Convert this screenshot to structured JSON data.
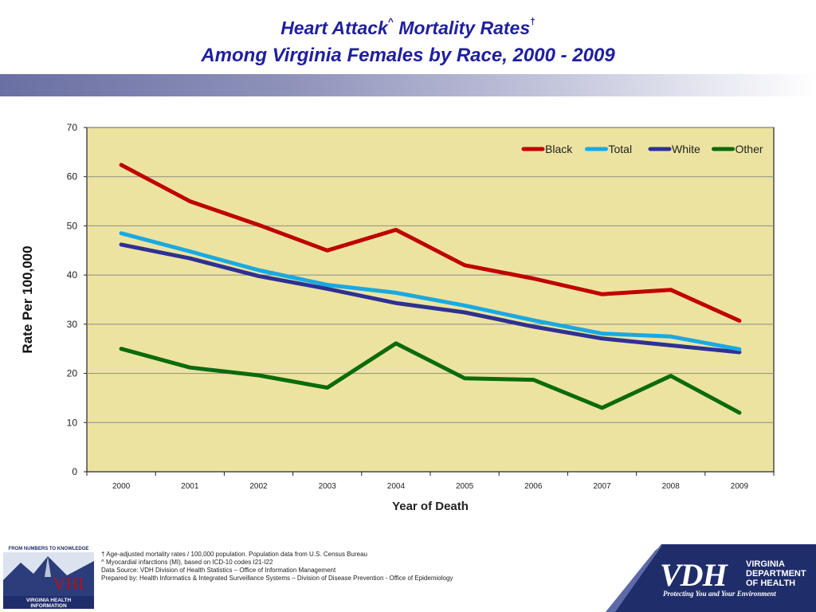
{
  "header": {
    "title_part1": "Heart Attack",
    "title_sup1": "^",
    "title_part2": " Mortality Rates",
    "title_sup2": "†",
    "subtitle": "Among Virginia Females by Race, 2000 - 2009"
  },
  "chart_data": {
    "type": "line",
    "x": [
      "2000",
      "2001",
      "2002",
      "2003",
      "2004",
      "2005",
      "2006",
      "2007",
      "2008",
      "2009"
    ],
    "series": [
      {
        "name": "Black",
        "color": "#c00000",
        "values": [
          62.4,
          55.0,
          50.2,
          45.0,
          49.2,
          42.0,
          39.3,
          36.1,
          37.0,
          30.7
        ]
      },
      {
        "name": "Total",
        "color": "#1aa9e0",
        "values": [
          48.5,
          44.8,
          41.0,
          38.0,
          36.4,
          33.8,
          30.8,
          28.1,
          27.5,
          24.9
        ]
      },
      {
        "name": "White",
        "color": "#2e3192",
        "values": [
          46.2,
          43.4,
          39.8,
          37.2,
          34.3,
          32.4,
          29.5,
          27.1,
          25.7,
          24.3
        ]
      },
      {
        "name": "Other",
        "color": "#0b6b0b",
        "values": [
          25.0,
          21.2,
          19.6,
          17.1,
          26.1,
          19.0,
          18.7,
          13.0,
          19.5,
          12.0
        ]
      }
    ],
    "xlabel": "Year of Death",
    "ylabel": "Rate Per 100,000",
    "ylim": [
      0,
      70
    ],
    "yticks": [
      0,
      10,
      20,
      30,
      40,
      50,
      60,
      70
    ],
    "grid": true,
    "legend_position": "top-right",
    "plot_bg": "#ede3a1"
  },
  "footnotes": [
    "† Age-adjusted mortality rates / 100,000 population.  Population data from U.S. Census Bureau",
    "^  Myocardial infarctions (MI), based on ICD-10 codes I21-I22",
    "Data Source: VDH  Division of Health Statistics – Office of Information Management",
    "Prepared by:  Health Informatics & Integrated Surveillance Systems – Division of Disease Prevention - Office of Epidemiology"
  ],
  "logos": {
    "vhi_top": "FROM NUMBERS TO KNOWLEDGE",
    "vhi_mark": "VHI",
    "vhi_bottom1": "VIRGINIA HEALTH",
    "vhi_bottom2": "INFORMATION",
    "vdh_mark": "VDH",
    "vdh_line1": "VIRGINIA",
    "vdh_line2": "DEPARTMENT",
    "vdh_line3": "OF HEALTH",
    "vdh_tagline": "Protecting You and Your Environment"
  }
}
